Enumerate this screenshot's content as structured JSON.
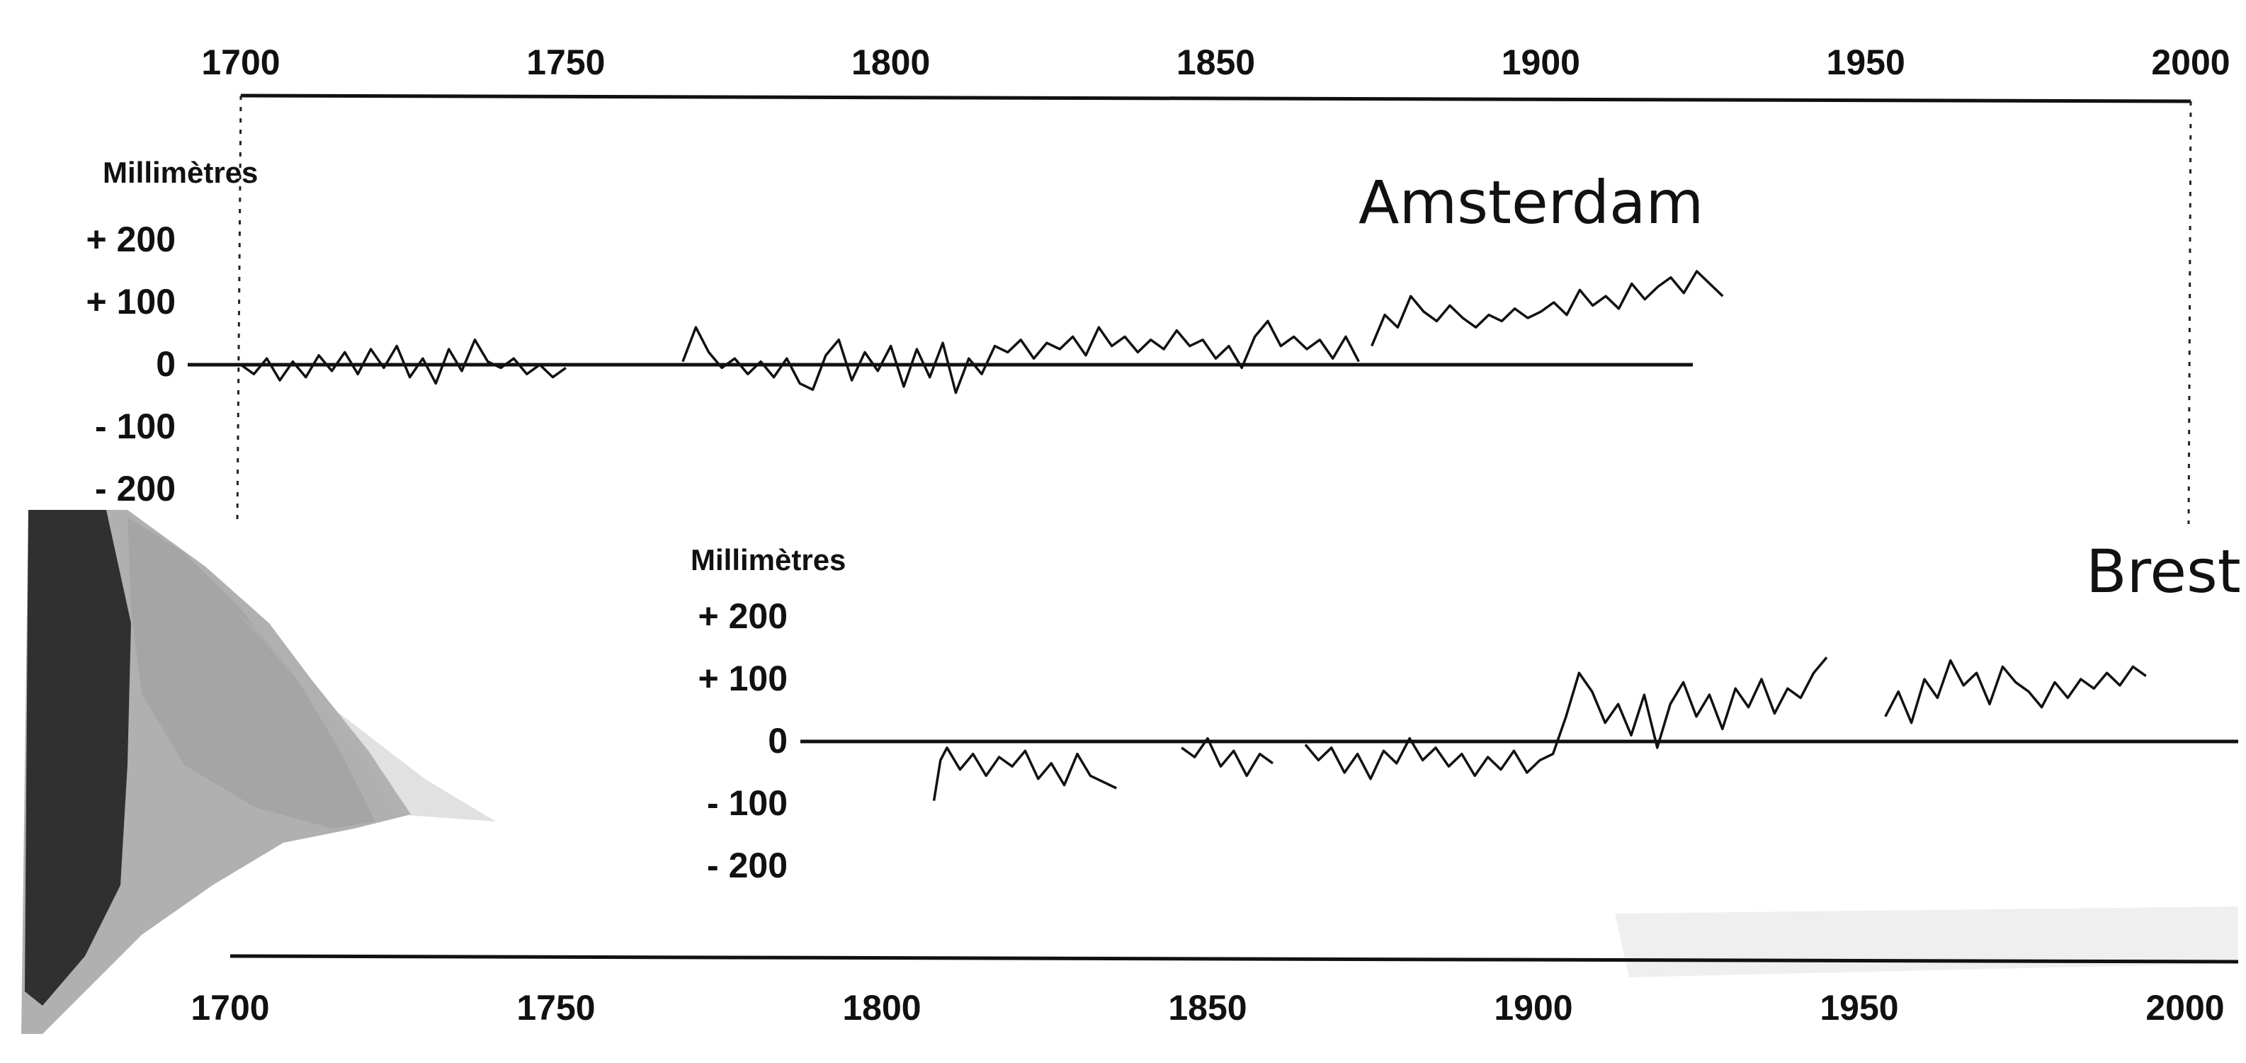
{
  "chart_data": [
    {
      "type": "line",
      "title": "Amsterdam",
      "ylabel": "Millimètres",
      "xlim": [
        1700,
        2000
      ],
      "ylim": [
        -200,
        200
      ],
      "x_ticks": [
        "1700",
        "1750",
        "1800",
        "1850",
        "1900",
        "1950",
        "2000"
      ],
      "y_ticks": [
        "+ 200",
        "+ 100",
        "0",
        "- 100",
        "- 200"
      ],
      "grid": false,
      "segments": [
        {
          "x": [
            1700,
            1702,
            1704,
            1706,
            1708,
            1710,
            1712,
            1714,
            1716,
            1718,
            1720,
            1722,
            1724,
            1726,
            1728,
            1730,
            1732,
            1734,
            1736,
            1738,
            1740,
            1742,
            1744,
            1746,
            1748,
            1750
          ],
          "y": [
            0,
            -15,
            10,
            -25,
            5,
            -20,
            15,
            -10,
            20,
            -15,
            25,
            -5,
            30,
            -20,
            10,
            -30,
            25,
            -10,
            40,
            5,
            -5,
            10,
            -15,
            0,
            -20,
            -5
          ]
        },
        {
          "x": [
            1768,
            1770,
            1772,
            1774,
            1776,
            1778,
            1780,
            1782,
            1784,
            1786,
            1788,
            1790,
            1792,
            1794,
            1796,
            1798,
            1800,
            1802,
            1804,
            1806,
            1808,
            1810,
            1812,
            1814,
            1816,
            1818,
            1820,
            1822,
            1824,
            1826,
            1828,
            1830,
            1832,
            1834,
            1836,
            1838,
            1840,
            1842,
            1844,
            1846,
            1848,
            1850,
            1852,
            1854,
            1856,
            1858,
            1860,
            1862,
            1864,
            1866,
            1868,
            1870,
            1872
          ],
          "y": [
            5,
            60,
            20,
            -5,
            10,
            -15,
            5,
            -20,
            10,
            -30,
            -40,
            15,
            40,
            -25,
            20,
            -10,
            30,
            -35,
            25,
            -20,
            35,
            -45,
            10,
            -15,
            30,
            20,
            40,
            10,
            35,
            25,
            45,
            15,
            60,
            30,
            45,
            20,
            40,
            25,
            55,
            30,
            40,
            10,
            30,
            -5,
            45,
            70,
            30,
            45,
            25,
            40,
            10,
            45,
            5
          ]
        },
        {
          "x": [
            1874,
            1876,
            1878,
            1880,
            1882,
            1884,
            1886,
            1888,
            1890,
            1892,
            1894,
            1896,
            1898,
            1900,
            1902,
            1904,
            1906,
            1908,
            1910,
            1912,
            1914,
            1916,
            1918,
            1920,
            1922,
            1924,
            1926,
            1928
          ],
          "y": [
            30,
            80,
            60,
            110,
            85,
            70,
            95,
            75,
            60,
            80,
            70,
            90,
            75,
            85,
            100,
            80,
            120,
            95,
            110,
            90,
            130,
            105,
            125,
            140,
            115,
            150,
            130,
            110
          ]
        }
      ]
    },
    {
      "type": "line",
      "title": "Brest",
      "ylabel": "Millimètres",
      "xlim": [
        1700,
        2000
      ],
      "ylim": [
        -200,
        200
      ],
      "x_ticks": [
        "1700",
        "1750",
        "1800",
        "1850",
        "1900",
        "1950",
        "2000"
      ],
      "y_ticks": [
        "+ 200",
        "+ 100",
        "0",
        "- 100",
        "- 200"
      ],
      "grid": false,
      "segments": [
        {
          "x": [
            1808,
            1809,
            1810,
            1812,
            1814,
            1816,
            1818,
            1820,
            1822,
            1824,
            1826,
            1828,
            1830,
            1832,
            1834,
            1836
          ],
          "y": [
            -95,
            -30,
            -10,
            -45,
            -20,
            -55,
            -25,
            -40,
            -15,
            -60,
            -35,
            -70,
            -20,
            -55,
            -65,
            -75
          ]
        },
        {
          "x": [
            1846,
            1848,
            1850,
            1852,
            1854,
            1856,
            1858,
            1860
          ],
          "y": [
            -10,
            -25,
            5,
            -40,
            -15,
            -55,
            -20,
            -35
          ]
        },
        {
          "x": [
            1865,
            1867,
            1869,
            1871,
            1873,
            1875,
            1877,
            1879,
            1881,
            1883,
            1885,
            1887,
            1889,
            1891,
            1893,
            1895,
            1897,
            1899,
            1901,
            1903,
            1905,
            1907,
            1909,
            1911,
            1913,
            1915,
            1917,
            1919,
            1921,
            1923,
            1925,
            1927,
            1929,
            1931,
            1933,
            1935,
            1937,
            1939,
            1941,
            1943,
            1945
          ],
          "y": [
            -5,
            -30,
            -10,
            -50,
            -20,
            -60,
            -15,
            -35,
            5,
            -30,
            -10,
            -40,
            -20,
            -55,
            -25,
            -45,
            -15,
            -50,
            -30,
            -20,
            40,
            110,
            80,
            30,
            60,
            10,
            75,
            -10,
            60,
            95,
            40,
            75,
            20,
            85,
            55,
            100,
            45,
            85,
            70,
            110,
            135
          ]
        },
        {
          "x": [
            1954,
            1956,
            1958,
            1960,
            1962,
            1964,
            1966,
            1968,
            1970,
            1972,
            1974,
            1976,
            1978,
            1980,
            1982,
            1984,
            1986,
            1988,
            1990,
            1992,
            1994
          ],
          "y": [
            40,
            80,
            30,
            100,
            70,
            130,
            90,
            110,
            60,
            120,
            95,
            80,
            55,
            95,
            70,
            100,
            85,
            110,
            90,
            120,
            105
          ]
        }
      ]
    }
  ]
}
